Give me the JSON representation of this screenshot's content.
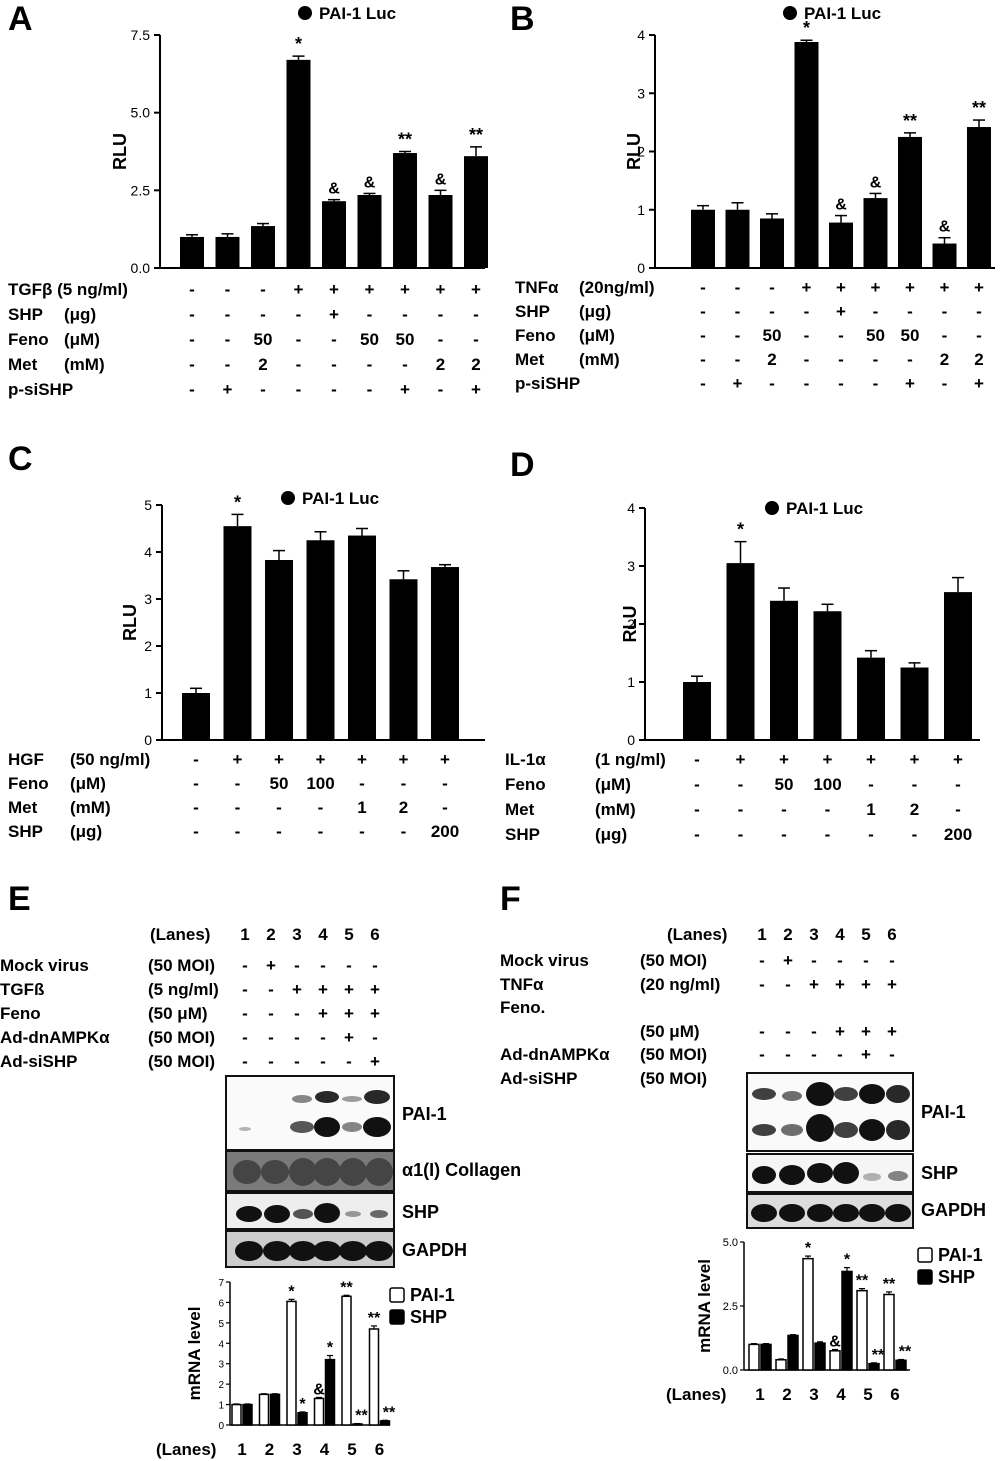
{
  "panels": {
    "A": {
      "letter": "A",
      "legend": "PAI-1 Luc",
      "ylabel": "RLU",
      "conditions": [
        {
          "label": "TGFβ (5 ng/ml)",
          "unit": "",
          "marks": [
            "-",
            "-",
            "-",
            "+",
            "+",
            "+",
            "+",
            "+",
            "+"
          ]
        },
        {
          "label": "SHP",
          "unit": "(μg)",
          "marks": [
            "-",
            "-",
            "-",
            "-",
            "+",
            "-",
            "-",
            "-",
            "-"
          ]
        },
        {
          "label": "Feno",
          "unit": "(μM)",
          "marks": [
            "-",
            "-",
            "50",
            "-",
            "-",
            "50",
            "50",
            "-",
            "-"
          ]
        },
        {
          "label": "Met",
          "unit": "(mM)",
          "marks": [
            "-",
            "-",
            "2",
            "-",
            "-",
            "-",
            "-",
            "2",
            "2"
          ]
        },
        {
          "label": "p-siSHP",
          "unit": "",
          "marks": [
            "-",
            "+",
            "-",
            "-",
            "-",
            "-",
            "+",
            "-",
            "+"
          ]
        }
      ]
    },
    "B": {
      "letter": "B",
      "legend": "PAI-1 Luc",
      "ylabel": "RLU",
      "conditions": [
        {
          "label": "TNFα",
          "unit": "(20ng/ml)",
          "marks": [
            "-",
            "-",
            "-",
            "+",
            "+",
            "+",
            "+",
            "+",
            "+"
          ]
        },
        {
          "label": "SHP",
          "unit": "(μg)",
          "marks": [
            "-",
            "-",
            "-",
            "-",
            "+",
            "-",
            "-",
            "-",
            "-"
          ]
        },
        {
          "label": "Feno",
          "unit": "(μM)",
          "marks": [
            "-",
            "-",
            "50",
            "-",
            "-",
            "50",
            "50",
            "-",
            "-"
          ]
        },
        {
          "label": "Met",
          "unit": "(mM)",
          "marks": [
            "-",
            "-",
            "2",
            "-",
            "-",
            "-",
            "-",
            "2",
            "2"
          ]
        },
        {
          "label": "p-siSHP",
          "unit": "",
          "marks": [
            "-",
            "+",
            "-",
            "-",
            "-",
            "-",
            "+",
            "-",
            "+"
          ]
        }
      ]
    },
    "C": {
      "letter": "C",
      "legend": "PAI-1 Luc",
      "ylabel": "RLU",
      "conditions": [
        {
          "label": "HGF",
          "unit": "(50 ng/ml)",
          "marks": [
            "-",
            "+",
            "+",
            "+",
            "+",
            "+",
            "+"
          ]
        },
        {
          "label": "Feno",
          "unit": "(μM)",
          "marks": [
            "-",
            "-",
            "50",
            "100",
            "-",
            "-",
            "-"
          ]
        },
        {
          "label": "Met",
          "unit": "(mM)",
          "marks": [
            "-",
            "-",
            "-",
            "-",
            "1",
            "2",
            "-"
          ]
        },
        {
          "label": "SHP",
          "unit": "(μg)",
          "marks": [
            "-",
            "-",
            "-",
            "-",
            "-",
            "-",
            "200"
          ]
        }
      ]
    },
    "D": {
      "letter": "D",
      "legend": "PAI-1 Luc",
      "ylabel": "RLU",
      "conditions": [
        {
          "label": "IL-1α",
          "unit": "(1 ng/ml)",
          "marks": [
            "-",
            "+",
            "+",
            "+",
            "+",
            "+",
            "+"
          ]
        },
        {
          "label": "Feno",
          "unit": "(μM)",
          "marks": [
            "-",
            "-",
            "50",
            "100",
            "-",
            "-",
            "-"
          ]
        },
        {
          "label": "Met",
          "unit": "(mM)",
          "marks": [
            "-",
            "-",
            "-",
            "-",
            "1",
            "2",
            "-"
          ]
        },
        {
          "label": "SHP",
          "unit": "(μg)",
          "marks": [
            "-",
            "-",
            "-",
            "-",
            "-",
            "-",
            "200"
          ]
        }
      ]
    },
    "E": {
      "letter": "E",
      "lanes_label": "(Lanes)",
      "lanes": [
        "1",
        "2",
        "3",
        "4",
        "5",
        "6"
      ],
      "conditions": [
        {
          "label": "Mock virus",
          "unit": "(50 MOI)",
          "marks": [
            "-",
            "+",
            "-",
            "-",
            "-",
            "-"
          ]
        },
        {
          "label": "TGFß",
          "unit": "(5 ng/ml)",
          "marks": [
            "-",
            "-",
            "+",
            "+",
            "+",
            "+"
          ]
        },
        {
          "label": "Feno",
          "unit": "(50 μM)",
          "marks": [
            "-",
            "-",
            "-",
            "+",
            "+",
            "+"
          ]
        },
        {
          "label": "Ad-dnAMPKα",
          "unit": "(50 MOI)",
          "marks": [
            "-",
            "-",
            "-",
            "-",
            "+",
            "-"
          ]
        },
        {
          "label": "Ad-siSHP",
          "unit": "(50 MOI)",
          "marks": [
            "-",
            "-",
            "-",
            "-",
            "-",
            "+"
          ]
        }
      ],
      "blots": [
        "PAI-1",
        "α1(I) Collagen",
        "SHP",
        "GAPDH"
      ],
      "mrna_ylabel": "mRNA level",
      "legend": [
        "PAI-1",
        "SHP"
      ]
    },
    "F": {
      "letter": "F",
      "lanes_label": "(Lanes)",
      "lanes": [
        "1",
        "2",
        "3",
        "4",
        "5",
        "6"
      ],
      "conditions": [
        {
          "label": "Mock virus",
          "unit": "(50 MOI)",
          "marks": [
            "-",
            "+",
            "-",
            "-",
            "-",
            "-"
          ]
        },
        {
          "label": "TNFα",
          "unit": "(20 ng/ml)",
          "marks": [
            "-",
            "-",
            "+",
            "+",
            "+",
            "+"
          ]
        },
        {
          "label": "Feno.",
          "unit": "",
          "marks": [
            "",
            "",
            "",
            "",
            "",
            ""
          ]
        },
        {
          "label": "",
          "unit": "(50 μM)",
          "marks": [
            "-",
            "-",
            "-",
            "+",
            "+",
            "+"
          ]
        },
        {
          "label": "Ad-dnAMPKα",
          "unit": "(50 MOI)",
          "marks": [
            "-",
            "-",
            "-",
            "-",
            "+",
            "-"
          ]
        },
        {
          "label": "Ad-siSHP",
          "unit": "(50 MOI)",
          "marks": [
            "-",
            "-",
            "-",
            "-",
            "-",
            "+"
          ]
        }
      ],
      "blots": [
        "PAI-1",
        "SHP",
        "GAPDH"
      ],
      "mrna_ylabel": "mRNA level",
      "legend": [
        "PAI-1",
        "SHP"
      ]
    }
  },
  "chart_data": [
    {
      "id": "A",
      "type": "bar",
      "title": "PAI-1 Luc",
      "ylabel": "RLU",
      "ylim": [
        0,
        7.5
      ],
      "yticks": [
        0.0,
        2.5,
        5.0,
        7.5
      ],
      "ytick_labels": [
        "0.0",
        "2.5",
        "5.0",
        "7.5"
      ],
      "values": [
        1.0,
        1.0,
        1.35,
        6.7,
        2.15,
        2.35,
        3.7,
        2.35,
        3.6
      ],
      "errors": [
        0.07,
        0.1,
        0.08,
        0.12,
        0.05,
        0.05,
        0.05,
        0.15,
        0.3
      ],
      "annotations": [
        "",
        "",
        "",
        "*",
        "&",
        "&",
        "**",
        "&",
        "**"
      ]
    },
    {
      "id": "B",
      "type": "bar",
      "title": "PAI-1 Luc",
      "ylabel": "RLU",
      "ylim": [
        0,
        4
      ],
      "yticks": [
        0,
        1,
        2,
        3,
        4
      ],
      "ytick_labels": [
        "0",
        "1",
        "2",
        "3",
        "4"
      ],
      "values": [
        1.0,
        1.0,
        0.85,
        3.88,
        0.78,
        1.2,
        2.25,
        0.42,
        2.42
      ],
      "errors": [
        0.07,
        0.12,
        0.08,
        0.03,
        0.12,
        0.08,
        0.07,
        0.1,
        0.12
      ],
      "annotations": [
        "",
        "",
        "",
        "*",
        "&",
        "&",
        "**",
        "&",
        "**"
      ]
    },
    {
      "id": "C",
      "type": "bar",
      "title": "PAI-1 Luc",
      "ylabel": "RLU",
      "ylim": [
        0,
        5
      ],
      "yticks": [
        0,
        1,
        2,
        3,
        4,
        5
      ],
      "ytick_labels": [
        "0",
        "1",
        "2",
        "3",
        "4",
        "5"
      ],
      "values": [
        1.0,
        4.55,
        3.83,
        4.25,
        4.35,
        3.42,
        3.68
      ],
      "errors": [
        0.1,
        0.25,
        0.2,
        0.18,
        0.15,
        0.18,
        0.05
      ],
      "annotations": [
        "",
        "*",
        "",
        "",
        "",
        "",
        ""
      ]
    },
    {
      "id": "D",
      "type": "bar",
      "title": "PAI-1 Luc",
      "ylabel": "RLU",
      "ylim": [
        0,
        4
      ],
      "yticks": [
        0,
        1,
        2,
        3,
        4
      ],
      "ytick_labels": [
        "0",
        "1",
        "2",
        "3",
        "4"
      ],
      "values": [
        1.0,
        3.05,
        2.4,
        2.22,
        1.42,
        1.25,
        2.55
      ],
      "errors": [
        0.1,
        0.37,
        0.22,
        0.12,
        0.12,
        0.08,
        0.25
      ],
      "annotations": [
        "",
        "*",
        "",
        "",
        "",
        "",
        ""
      ]
    },
    {
      "id": "E-mRNA",
      "type": "bar",
      "ylabel": "mRNA level",
      "ylim": [
        0,
        7
      ],
      "yticks": [
        0,
        1,
        2,
        3,
        4,
        5,
        6,
        7
      ],
      "ytick_labels": [
        "0",
        "1",
        "2",
        "3",
        "4",
        "5",
        "6",
        "7"
      ],
      "xlabel": "(Lanes)",
      "categories": [
        "1",
        "2",
        "3",
        "4",
        "5",
        "6"
      ],
      "series": [
        {
          "name": "PAI-1",
          "values": [
            1.0,
            1.5,
            6.05,
            1.3,
            6.3,
            4.7
          ],
          "errors": [
            0.03,
            0.03,
            0.1,
            0.05,
            0.05,
            0.15
          ],
          "annotations": [
            "",
            "",
            "*",
            "&",
            "**",
            "**"
          ]
        },
        {
          "name": "SHP",
          "values": [
            1.0,
            1.5,
            0.6,
            3.2,
            0.05,
            0.2
          ],
          "errors": [
            0.03,
            0.03,
            0.04,
            0.2,
            0.02,
            0.03
          ],
          "annotations": [
            "",
            "",
            "*",
            "*",
            "**",
            "**"
          ]
        }
      ]
    },
    {
      "id": "F-mRNA",
      "type": "bar",
      "ylabel": "mRNA level",
      "ylim": [
        0,
        5
      ],
      "yticks": [
        0,
        2.5,
        5
      ],
      "ytick_labels": [
        "0.0",
        "2.5",
        "5.0"
      ],
      "xlabel": "(Lanes)",
      "categories": [
        "1",
        "2",
        "3",
        "4",
        "5",
        "6"
      ],
      "series": [
        {
          "name": "PAI-1",
          "values": [
            1.0,
            0.4,
            4.35,
            0.75,
            3.1,
            2.95
          ],
          "errors": [
            0.03,
            0.03,
            0.1,
            0.05,
            0.08,
            0.1
          ],
          "annotations": [
            "",
            "",
            "*",
            "&",
            "**",
            "**"
          ]
        },
        {
          "name": "SHP",
          "values": [
            1.0,
            1.35,
            1.05,
            3.85,
            0.25,
            0.38
          ],
          "errors": [
            0.03,
            0.03,
            0.05,
            0.15,
            0.03,
            0.03
          ],
          "annotations": [
            "",
            "",
            "",
            "*",
            "**",
            "**"
          ]
        }
      ]
    }
  ]
}
